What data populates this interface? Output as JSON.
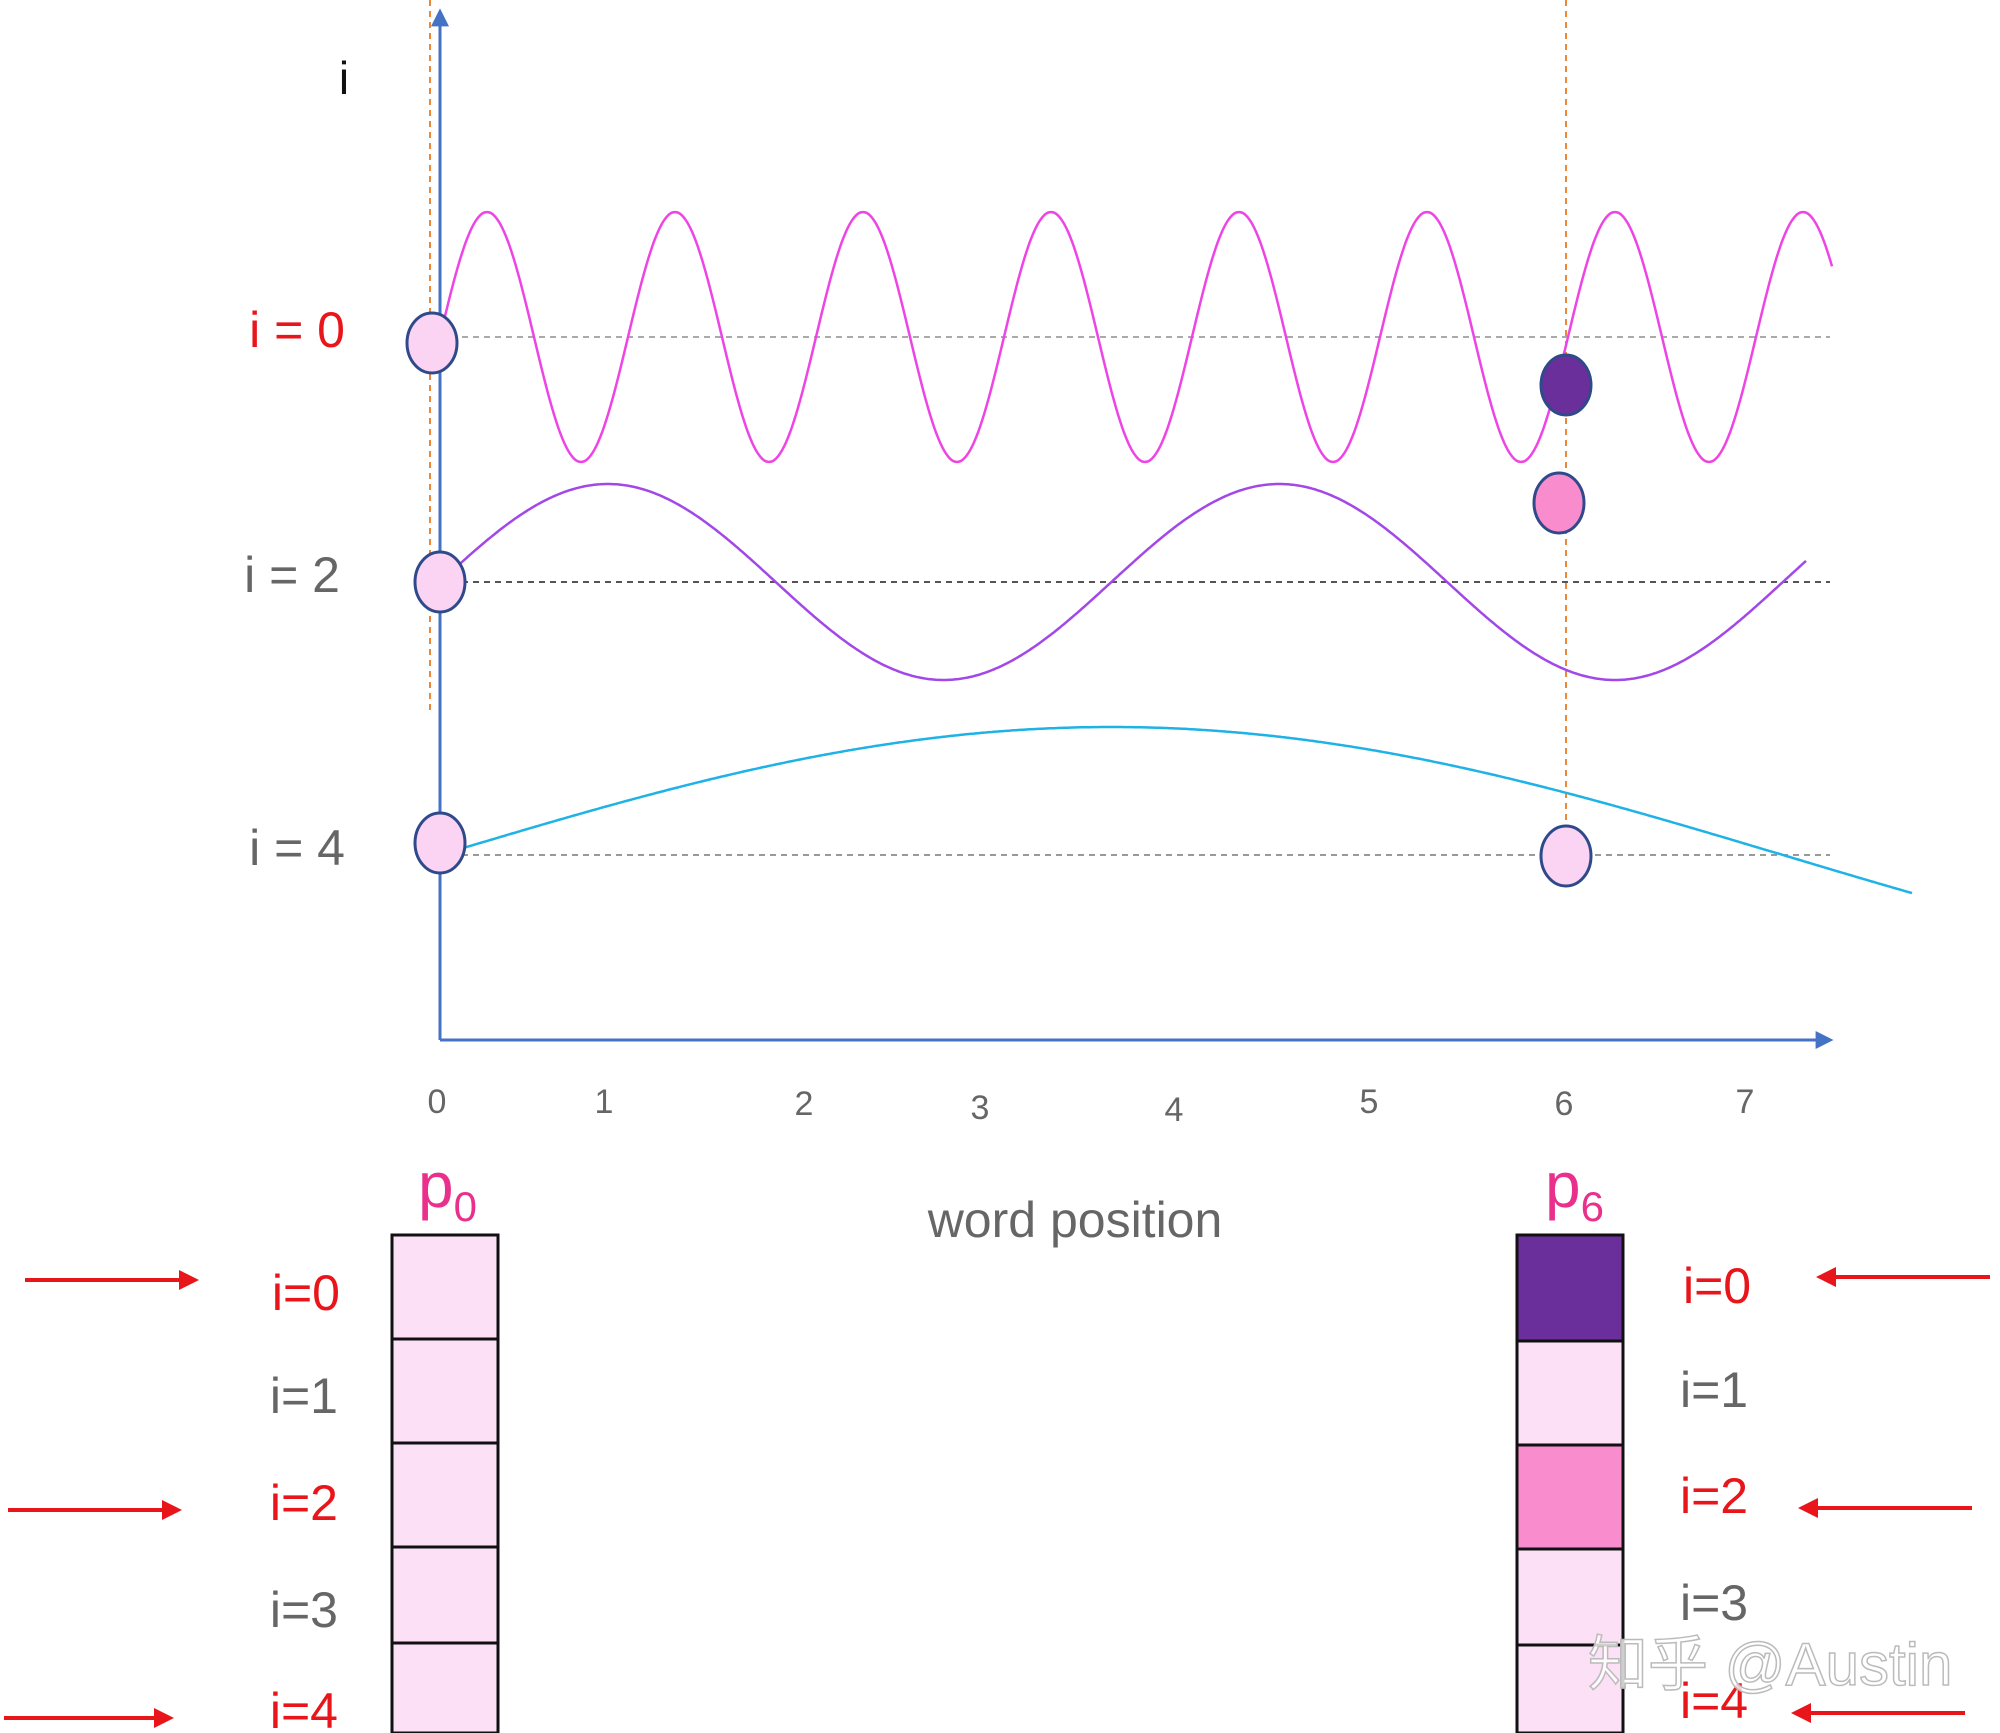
{
  "axis": {
    "y_label": "i",
    "x_label": "word position",
    "x_ticks": [
      "0",
      "1",
      "2",
      "3",
      "4",
      "5",
      "6",
      "7"
    ]
  },
  "curves": [
    {
      "label": "i = 0",
      "label_color": "#e8151b",
      "curve_color": "#ee44e6",
      "cycles_per_position": 1.0
    },
    {
      "label": "i = 2",
      "label_color": "#666666",
      "curve_color": "#a247e8",
      "cycles_per_position": 0.28
    },
    {
      "label": "i = 4",
      "label_color": "#666666",
      "curve_color": "#1fb2e6",
      "cycles_per_position": 0.07
    }
  ],
  "markers": [
    {
      "position": 0,
      "curve": 0,
      "fill": "#fbd4f4"
    },
    {
      "position": 0,
      "curve": 1,
      "fill": "#fbd4f4"
    },
    {
      "position": 0,
      "curve": 2,
      "fill": "#fbd4f4"
    },
    {
      "position": 6,
      "curve": 0,
      "fill": "#6b2f9b"
    },
    {
      "position": 6,
      "curve": 1,
      "fill": "#f98ccc"
    },
    {
      "position": 6,
      "curve": 2,
      "fill": "#fbd4f4"
    }
  ],
  "vectors": [
    {
      "title": "p",
      "subscript": "0",
      "cells": [
        {
          "label": "i=0",
          "highlighted": true,
          "fill": "#fce0f6"
        },
        {
          "label": "i=1",
          "highlighted": false,
          "fill": "#fce0f6"
        },
        {
          "label": "i=2",
          "highlighted": true,
          "fill": "#fce0f6"
        },
        {
          "label": "i=3",
          "highlighted": false,
          "fill": "#fce0f6"
        },
        {
          "label": "i=4",
          "highlighted": true,
          "fill": "#fce0f6"
        }
      ]
    },
    {
      "title": "p",
      "subscript": "6",
      "cells": [
        {
          "label": "i=0",
          "highlighted": true,
          "fill": "#6b2f9b"
        },
        {
          "label": "i=1",
          "highlighted": false,
          "fill": "#fce0f6"
        },
        {
          "label": "i=2",
          "highlighted": true,
          "fill": "#f98ccc"
        },
        {
          "label": "i=3",
          "highlighted": false,
          "fill": "#fce0f6"
        },
        {
          "label": "i=4",
          "highlighted": true,
          "fill": "#fce0f6"
        }
      ]
    }
  ],
  "colors": {
    "axis": "#4472c4",
    "guide": "#e9883a",
    "arrow": "#e8151b",
    "title": "#e8308c",
    "highlight_text": "#e8151b",
    "normal_text": "#666666"
  },
  "watermark": "知乎 @Austin"
}
